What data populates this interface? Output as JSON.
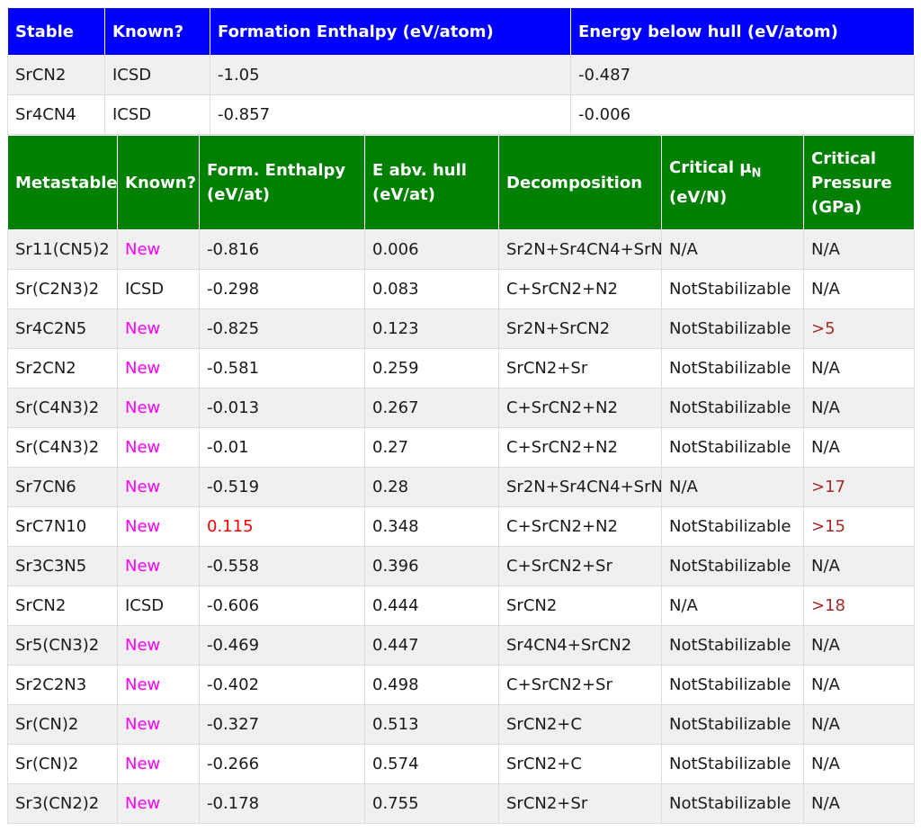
{
  "stable": {
    "headers": [
      "Stable",
      "Known?",
      "Formation Enthalpy (eV/atom)",
      "Energy below hull (eV/atom)"
    ],
    "rows": [
      {
        "formula": "SrCN2",
        "known": "ICSD",
        "enthalpy": "-1.05",
        "hull": "-0.487"
      },
      {
        "formula": "Sr4CN4",
        "known": "ICSD",
        "enthalpy": "-0.857",
        "hull": "-0.006"
      }
    ]
  },
  "metastable": {
    "headers": {
      "col1": "Metastable",
      "col2": "Known?",
      "col3": "Form. Enthalpy (eV/at)",
      "col4": "E abv. hull (eV/at)",
      "col5": "Decomposition",
      "col6_main": "Critical μ",
      "col6_sub": "N",
      "col6_unit": "(eV/N)",
      "col7": "Critical Pressure (GPa)"
    },
    "rows": [
      {
        "formula": "Sr11(CN5)2",
        "known": "New",
        "enthalpy": "-0.816",
        "hull": "0.006",
        "decomp": "Sr2N+Sr4CN4+SrN",
        "mu": "N/A",
        "pressure": "N/A"
      },
      {
        "formula": "Sr(C2N3)2",
        "known": "ICSD",
        "enthalpy": "-0.298",
        "hull": "0.083",
        "decomp": "C+SrCN2+N2",
        "mu": "NotStabilizable",
        "pressure": "N/A"
      },
      {
        "formula": "Sr4C2N5",
        "known": "New",
        "enthalpy": "-0.825",
        "hull": "0.123",
        "decomp": "Sr2N+SrCN2",
        "mu": "NotStabilizable",
        "pressure": ">5"
      },
      {
        "formula": "Sr2CN2",
        "known": "New",
        "enthalpy": "-0.581",
        "hull": "0.259",
        "decomp": "SrCN2+Sr",
        "mu": "NotStabilizable",
        "pressure": "N/A"
      },
      {
        "formula": "Sr(C4N3)2",
        "known": "New",
        "enthalpy": "-0.013",
        "hull": "0.267",
        "decomp": "C+SrCN2+N2",
        "mu": "NotStabilizable",
        "pressure": "N/A"
      },
      {
        "formula": "Sr(C4N3)2",
        "known": "New",
        "enthalpy": "-0.01",
        "hull": "0.27",
        "decomp": "C+SrCN2+N2",
        "mu": "NotStabilizable",
        "pressure": "N/A"
      },
      {
        "formula": "Sr7CN6",
        "known": "New",
        "enthalpy": "-0.519",
        "hull": "0.28",
        "decomp": "Sr2N+Sr4CN4+SrN",
        "mu": "N/A",
        "pressure": ">17"
      },
      {
        "formula": "SrC7N10",
        "known": "New",
        "enthalpy": "0.115",
        "hull": "0.348",
        "decomp": "C+SrCN2+N2",
        "mu": "NotStabilizable",
        "pressure": ">15"
      },
      {
        "formula": "Sr3C3N5",
        "known": "New",
        "enthalpy": "-0.558",
        "hull": "0.396",
        "decomp": "C+SrCN2+Sr",
        "mu": "NotStabilizable",
        "pressure": "N/A"
      },
      {
        "formula": "SrCN2",
        "known": "ICSD",
        "enthalpy": "-0.606",
        "hull": "0.444",
        "decomp": "SrCN2",
        "mu": "N/A",
        "pressure": ">18"
      },
      {
        "formula": "Sr5(CN3)2",
        "known": "New",
        "enthalpy": "-0.469",
        "hull": "0.447",
        "decomp": "Sr4CN4+SrCN2",
        "mu": "NotStabilizable",
        "pressure": "N/A"
      },
      {
        "formula": "Sr2C2N3",
        "known": "New",
        "enthalpy": "-0.402",
        "hull": "0.498",
        "decomp": "C+SrCN2+Sr",
        "mu": "NotStabilizable",
        "pressure": "N/A"
      },
      {
        "formula": "Sr(CN)2",
        "known": "New",
        "enthalpy": "-0.327",
        "hull": "0.513",
        "decomp": "SrCN2+C",
        "mu": "NotStabilizable",
        "pressure": "N/A"
      },
      {
        "formula": "Sr(CN)2",
        "known": "New",
        "enthalpy": "-0.266",
        "hull": "0.574",
        "decomp": "SrCN2+C",
        "mu": "NotStabilizable",
        "pressure": "N/A"
      },
      {
        "formula": "Sr3(CN2)2",
        "known": "New",
        "enthalpy": "-0.178",
        "hull": "0.755",
        "decomp": "SrCN2+Sr",
        "mu": "NotStabilizable",
        "pressure": "N/A"
      }
    ]
  },
  "colors": {
    "stable_header": "#0000ff",
    "metastable_header": "#008000",
    "new_text": "#ff00ff",
    "positive_enthalpy": "#ff0000",
    "critical_pressure": "#a52a2a"
  }
}
